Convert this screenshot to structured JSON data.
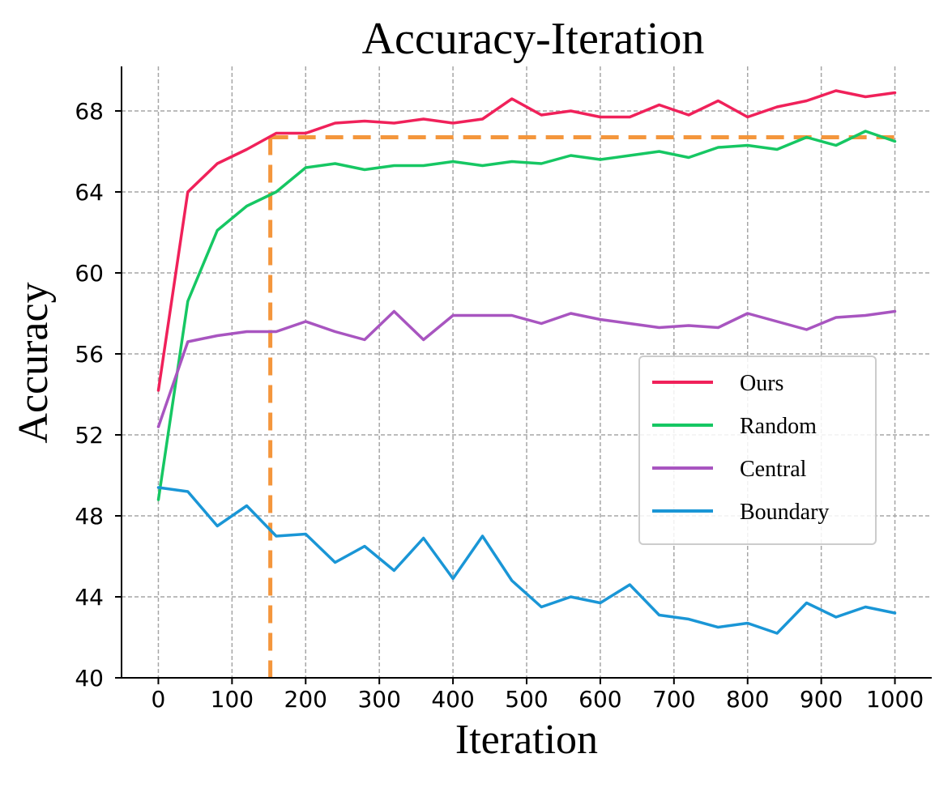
{
  "chart_data": {
    "type": "line",
    "title": "Accuracy-Iteration",
    "xlabel": "Iteration",
    "ylabel": "Accuracy",
    "xlim": [
      -50,
      1050
    ],
    "ylim": [
      40,
      70.2
    ],
    "xticks": [
      0,
      100,
      200,
      300,
      400,
      500,
      600,
      700,
      800,
      900,
      1000
    ],
    "xtick_labels": [
      "0",
      "100",
      "200",
      "300",
      "400",
      "500",
      "600",
      "700",
      "800",
      "900",
      "1000"
    ],
    "yticks": [
      40,
      44,
      48,
      52,
      56,
      60,
      64,
      68
    ],
    "ytick_labels": [
      "40",
      "44",
      "48",
      "52",
      "56",
      "60",
      "64",
      "68"
    ],
    "grid": true,
    "legend_position": "center-right",
    "x": [
      0,
      40,
      80,
      120,
      160,
      200,
      240,
      280,
      320,
      360,
      400,
      440,
      480,
      520,
      560,
      600,
      640,
      680,
      720,
      760,
      800,
      840,
      880,
      920,
      960,
      1000
    ],
    "series": [
      {
        "name": "Ours",
        "color": "#f0215a",
        "values": [
          54.2,
          64.0,
          65.4,
          66.1,
          66.9,
          66.9,
          67.4,
          67.5,
          67.4,
          67.6,
          67.4,
          67.6,
          68.6,
          67.8,
          68.0,
          67.7,
          67.7,
          68.3,
          67.8,
          68.5,
          67.7,
          68.2,
          68.5,
          69.0,
          68.7,
          68.9
        ]
      },
      {
        "name": "Random",
        "color": "#16c763",
        "values": [
          48.8,
          58.6,
          62.1,
          63.3,
          64.0,
          65.2,
          65.4,
          65.1,
          65.3,
          65.3,
          65.5,
          65.3,
          65.5,
          65.4,
          65.8,
          65.6,
          65.8,
          66.0,
          65.7,
          66.2,
          66.3,
          66.1,
          66.7,
          66.3,
          67.0,
          66.5
        ]
      },
      {
        "name": "Central",
        "color": "#a855c0",
        "values": [
          52.4,
          56.6,
          56.9,
          57.1,
          57.1,
          57.6,
          57.1,
          56.7,
          58.1,
          56.7,
          57.9,
          57.9,
          57.9,
          57.5,
          58.0,
          57.7,
          57.5,
          57.3,
          57.4,
          57.3,
          58.0,
          57.6,
          57.2,
          57.8,
          57.9,
          58.1
        ]
      },
      {
        "name": "Boundary",
        "color": "#1a96d6",
        "values": [
          49.4,
          49.2,
          47.5,
          48.5,
          47.0,
          47.1,
          45.7,
          46.5,
          45.3,
          46.9,
          44.9,
          47.0,
          44.8,
          43.5,
          44.0,
          43.7,
          44.6,
          43.1,
          42.9,
          42.5,
          42.7,
          42.2,
          43.7,
          43.0,
          43.5,
          43.2
        ]
      }
    ],
    "reference_lines": {
      "color": "#f4963c",
      "vertical_x": 152,
      "horizontal_y": 66.7,
      "horizontal_x_end": 1000
    }
  }
}
